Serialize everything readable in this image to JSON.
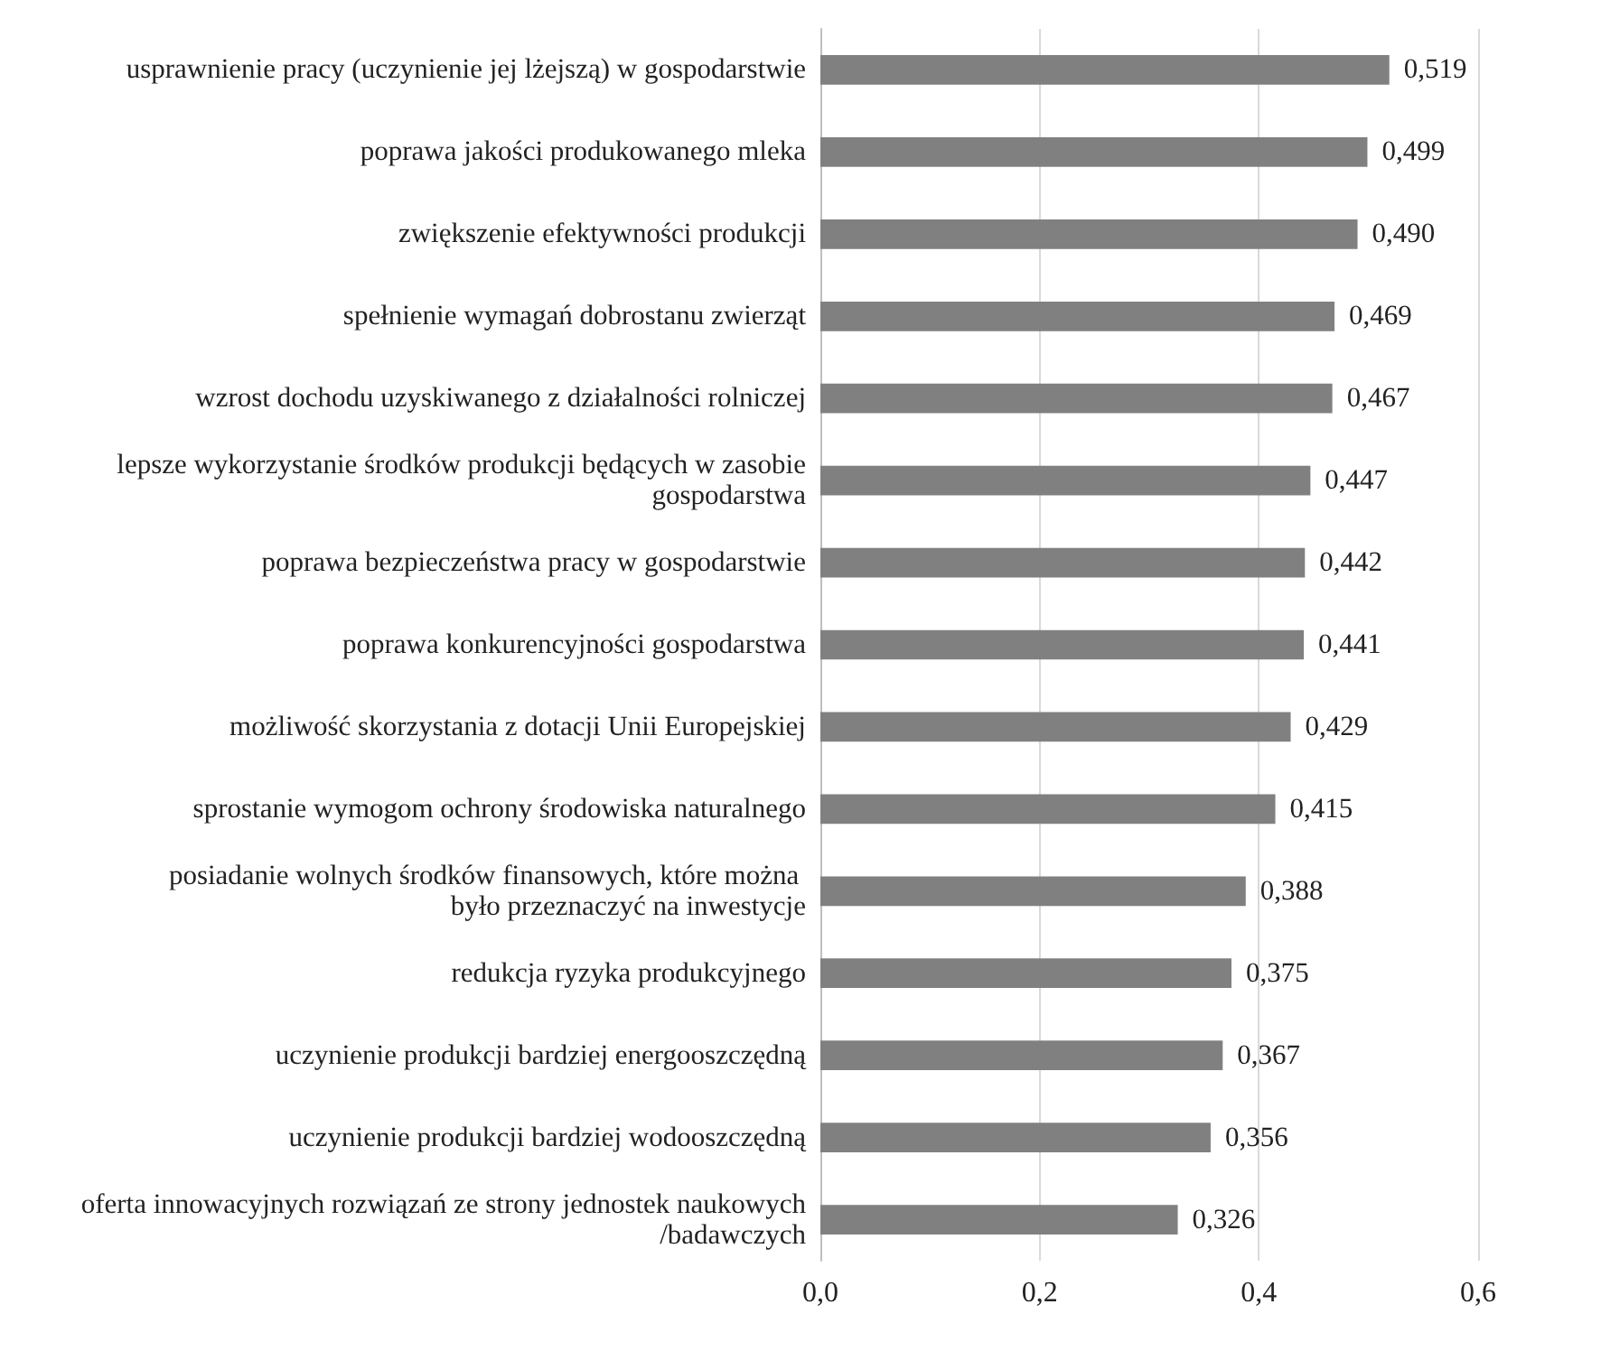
{
  "chart_data": {
    "type": "bar",
    "orientation": "horizontal",
    "categories": [
      "usprawnienie pracy (uczynienie jej lżejszą) w gospodarstwie",
      "poprawa jakości produkowanego mleka",
      "zwiększenie efektywności produkcji",
      "spełnienie wymagań dobrostanu zwierząt",
      "wzrost dochodu uzyskiwanego z działalności rolniczej",
      "lepsze wykorzystanie środków produkcji będących w zasobie gospodarstwa",
      "poprawa bezpieczeństwa pracy w gospodarstwie",
      "poprawa konkurencyjności gospodarstwa",
      "możliwość skorzystania z dotacji Unii Europejskiej",
      "sprostanie wymogom ochrony środowiska naturalnego",
      "posiadanie wolnych środków finansowych, które można było przeznaczyć na inwestycje",
      "redukcja ryzyka produkcyjnego",
      "uczynienie produkcji bardziej energooszczędną",
      "uczynienie produkcji bardziej wodooszczędną",
      "oferta innowacyjnych rozwiązań ze strony jednostek naukowych/badawczych"
    ],
    "values": [
      0.519,
      0.499,
      0.49,
      0.469,
      0.467,
      0.447,
      0.442,
      0.441,
      0.429,
      0.415,
      0.388,
      0.375,
      0.367,
      0.356,
      0.326
    ],
    "value_labels": [
      "0,519",
      "0,499",
      "0,490",
      "0,469",
      "0,467",
      "0,447",
      "0,442",
      "0,441",
      "0,429",
      "0,415",
      "0,388",
      "0,375",
      "0,367",
      "0,356",
      "0,326"
    ],
    "color": "#808080",
    "xlim": [
      0,
      0.6
    ],
    "xticks": [
      {
        "value": 0,
        "label": "0,0"
      },
      {
        "value": 0.2,
        "label": "0,2"
      },
      {
        "value": 0.4,
        "label": "0,4"
      },
      {
        "value": 0.6,
        "label": "0,6"
      }
    ],
    "grid": "x"
  }
}
